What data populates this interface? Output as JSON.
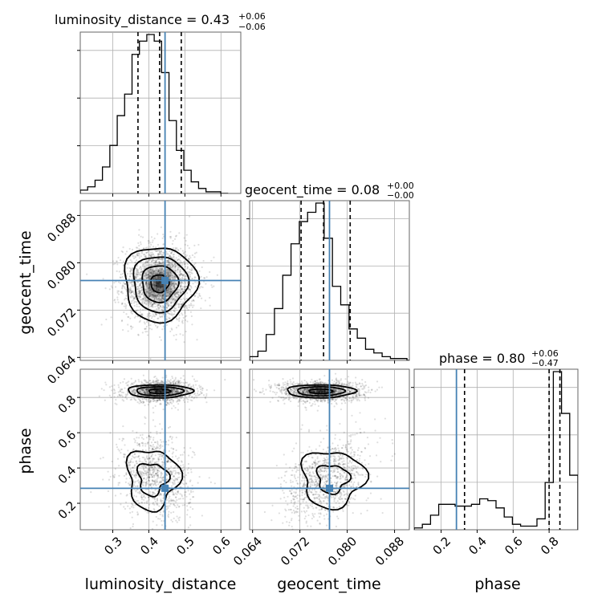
{
  "colors": {
    "truth": "#4682b4",
    "hist": "#000000",
    "grid": "#b0b0b0",
    "frame": "#666666",
    "density": "#000000"
  },
  "chart_data": {
    "type": "corner",
    "parameters": [
      "luminosity_distance",
      "geocent_time",
      "phase"
    ],
    "truths": {
      "luminosity_distance": 0.445,
      "geocent_time": 0.077,
      "phase": 0.285
    },
    "ranges": {
      "luminosity_distance": [
        0.21,
        0.655
      ],
      "geocent_time": [
        0.0635,
        0.0905
      ],
      "phase": [
        0.05,
        0.96
      ]
    },
    "ticks": {
      "luminosity_distance": [
        "0.3",
        "0.4",
        "0.5",
        "0.6"
      ],
      "geocent_time": [
        "0.064",
        "0.072",
        "0.080",
        "0.088"
      ],
      "phase": [
        "0.2",
        "0.4",
        "0.6",
        "0.8"
      ]
    },
    "titles": [
      {
        "label": "luminosity_distance = 0.43",
        "sup": "+0.06",
        "sub": "−0.06"
      },
      {
        "label": "geocent_time = 0.08",
        "sup": "+0.00",
        "sub": "−0.00"
      },
      {
        "label": "phase = 0.80",
        "sup": "+0.06",
        "sub": "−0.47"
      }
    ],
    "axis_labels": {
      "x": [
        "luminosity_distance",
        "geocent_time",
        "phase"
      ],
      "y": [
        "geocent_time",
        "phase"
      ]
    },
    "histograms": [
      {
        "parameter": "luminosity_distance",
        "quantiles": [
          0.37,
          0.43,
          0.49
        ],
        "bin_edges": [
          0.21,
          0.2305,
          0.251,
          0.2715,
          0.292,
          0.3125,
          0.333,
          0.3535,
          0.374,
          0.3945,
          0.415,
          0.4355,
          0.456,
          0.4765,
          0.497,
          0.5175,
          0.538,
          0.5585,
          0.579,
          0.5995,
          0.62
        ],
        "counts": [
          2,
          4,
          8,
          16,
          29,
          47,
          60,
          84,
          92,
          96,
          92,
          73,
          44,
          26,
          14,
          7,
          3,
          1,
          1,
          0
        ]
      },
      {
        "parameter": "geocent_time",
        "quantiles": [
          0.0722,
          0.076,
          0.0805
        ],
        "bin_edges": [
          0.0635,
          0.0649,
          0.0663,
          0.0677,
          0.0691,
          0.0705,
          0.0719,
          0.0733,
          0.0747,
          0.0761,
          0.0775,
          0.0789,
          0.0803,
          0.0817,
          0.0831,
          0.0845,
          0.0859,
          0.0873,
          0.0887,
          0.0901,
          0.0905
        ],
        "counts": [
          2,
          5,
          14,
          28,
          46,
          63,
          75,
          80,
          85,
          66,
          40,
          30,
          17,
          12,
          6,
          4,
          2,
          1,
          1,
          0
        ]
      },
      {
        "parameter": "phase",
        "quantiles": [
          0.33,
          0.8,
          0.86
        ],
        "bin_edges": [
          0.05,
          0.0955,
          0.141,
          0.1865,
          0.232,
          0.2775,
          0.323,
          0.3685,
          0.414,
          0.4595,
          0.505,
          0.5505,
          0.596,
          0.6415,
          0.687,
          0.7325,
          0.778,
          0.8235,
          0.869,
          0.9145,
          0.96
        ],
        "counts": [
          1,
          3,
          8,
          14,
          14,
          13,
          13,
          14,
          17,
          16,
          12,
          7,
          3,
          2,
          2,
          6,
          26,
          87,
          64,
          30
        ]
      }
    ]
  }
}
